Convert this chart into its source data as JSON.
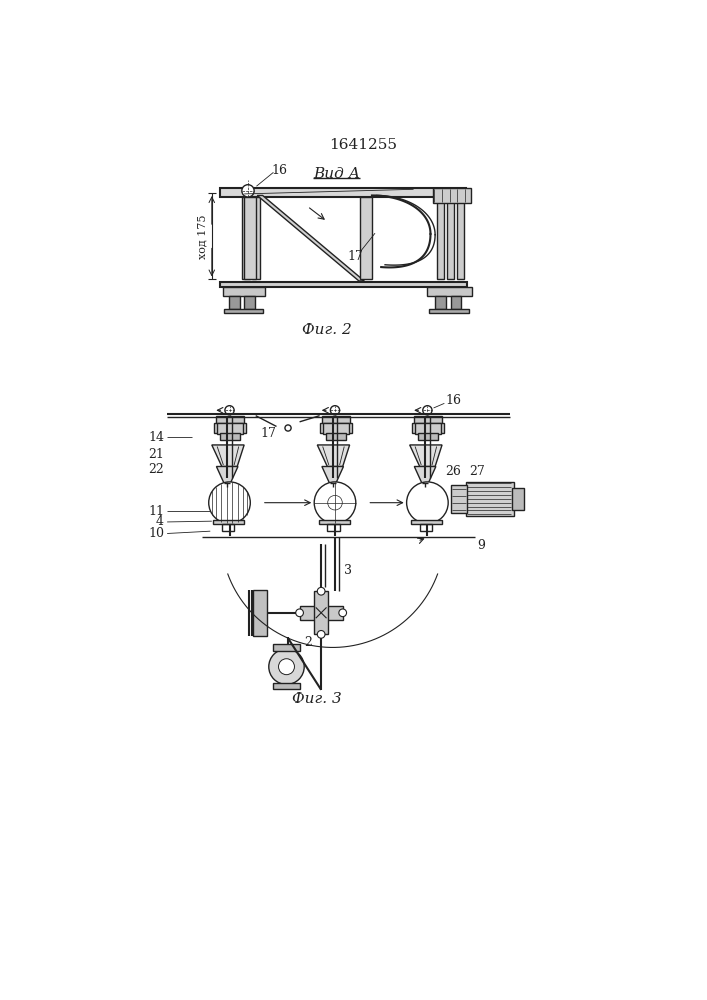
{
  "title": "1641255",
  "fig2_label": "Фиг. 2",
  "fig3_label": "Фиг. 3",
  "vid_a_label": "Вид А",
  "xod_label": "ход 175",
  "background_color": "#ffffff",
  "line_color": "#222222"
}
